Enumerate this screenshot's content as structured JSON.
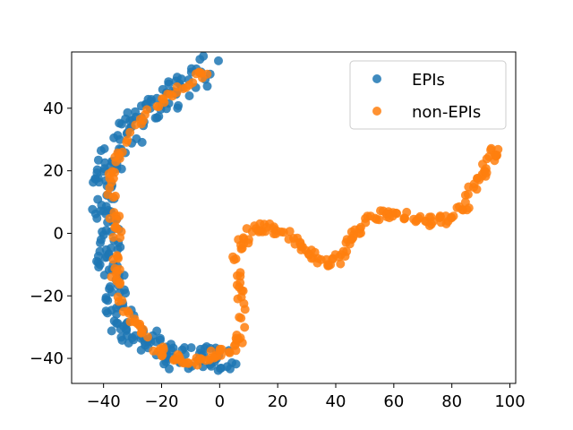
{
  "chart_data": {
    "type": "scatter",
    "title": "",
    "xlabel": "",
    "ylabel": "",
    "xlim": [
      -51,
      102
    ],
    "ylim": [
      -48,
      58
    ],
    "x_ticks": [
      -40,
      -20,
      0,
      20,
      40,
      60,
      80,
      100
    ],
    "y_ticks": [
      -40,
      -20,
      0,
      20,
      40
    ],
    "x_tick_labels": [
      "−40",
      "−20",
      "0",
      "20",
      "40",
      "60",
      "80",
      "100"
    ],
    "y_tick_labels": [
      "−40",
      "−20",
      "0",
      "20",
      "40"
    ],
    "grid": false,
    "legend_position": "top-right",
    "series": [
      {
        "name": "EPIs",
        "color": "#1f77b4",
        "path": [
          [
            -3,
            54
          ],
          [
            -8,
            50
          ],
          [
            -13,
            47
          ],
          [
            -18,
            44
          ],
          [
            -23,
            41
          ],
          [
            -27,
            37
          ],
          [
            -30,
            33
          ],
          [
            -33,
            29
          ],
          [
            -36,
            25
          ],
          [
            -38,
            21
          ],
          [
            -40,
            17
          ],
          [
            -40,
            12
          ],
          [
            -39,
            7
          ],
          [
            -38,
            2
          ],
          [
            -38,
            -3
          ],
          [
            -38,
            -8
          ],
          [
            -38,
            -13
          ],
          [
            -37,
            -18
          ],
          [
            -36,
            -23
          ],
          [
            -34,
            -27
          ],
          [
            -31,
            -31
          ],
          [
            -28,
            -34
          ],
          [
            -24,
            -37
          ],
          [
            -19,
            -39
          ],
          [
            -14,
            -40
          ],
          [
            -9,
            -41
          ],
          [
            -4,
            -40
          ],
          [
            0,
            -39
          ],
          [
            3,
            -38
          ]
        ],
        "jitter": 4.5,
        "points_per_segment": 9
      },
      {
        "name": "non-EPIs",
        "color": "#ff7f0e",
        "path": [
          [
            -3,
            54
          ],
          [
            -10,
            48
          ],
          [
            -18,
            44
          ],
          [
            -26,
            37
          ],
          [
            -32,
            29
          ],
          [
            -37,
            21
          ],
          [
            -38,
            13
          ],
          [
            -36,
            5
          ],
          [
            -35,
            -3
          ],
          [
            -36,
            -12
          ],
          [
            -34,
            -21
          ],
          [
            -30,
            -28
          ],
          [
            -25,
            -34
          ],
          [
            -19,
            -38
          ],
          [
            -13,
            -40
          ],
          [
            -7,
            -41
          ],
          [
            -2,
            -39
          ],
          [
            3,
            -38
          ],
          [
            7,
            -33
          ],
          [
            8,
            -24
          ],
          [
            7,
            -15
          ],
          [
            6,
            -7
          ],
          [
            9,
            -1
          ],
          [
            13,
            2
          ],
          [
            18,
            2
          ],
          [
            22,
            0
          ],
          [
            27,
            -3
          ],
          [
            31,
            -7
          ],
          [
            36,
            -9
          ],
          [
            40,
            -9
          ],
          [
            43,
            -6
          ],
          [
            46,
            0
          ],
          [
            50,
            4
          ],
          [
            55,
            6
          ],
          [
            60,
            6
          ],
          [
            66,
            5
          ],
          [
            72,
            4
          ],
          [
            77,
            4
          ],
          [
            81,
            6
          ],
          [
            85,
            10
          ],
          [
            88,
            15
          ],
          [
            91,
            20
          ],
          [
            94,
            25
          ],
          [
            95,
            27
          ]
        ],
        "jitter": 1.6,
        "points_per_segment": 7
      }
    ]
  }
}
